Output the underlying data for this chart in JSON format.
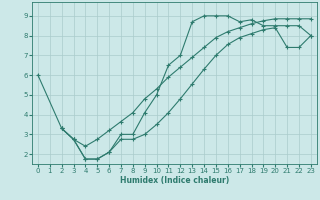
{
  "xlabel": "Humidex (Indice chaleur)",
  "bg_color": "#cce8e8",
  "grid_color": "#aacccc",
  "line_color": "#2e7b6e",
  "xlim": [
    -0.5,
    23.5
  ],
  "ylim": [
    1.5,
    9.7
  ],
  "xticks": [
    0,
    1,
    2,
    3,
    4,
    5,
    6,
    7,
    8,
    9,
    10,
    11,
    12,
    13,
    14,
    15,
    16,
    17,
    18,
    19,
    20,
    21,
    22,
    23
  ],
  "yticks": [
    2,
    3,
    4,
    5,
    6,
    7,
    8,
    9
  ],
  "curve1_x": [
    0,
    2,
    3,
    4,
    5,
    6,
    7,
    8,
    9,
    10,
    11,
    12,
    13,
    14,
    15,
    16,
    17,
    18,
    19,
    20,
    21,
    22,
    23
  ],
  "curve1_y": [
    6.0,
    3.3,
    2.75,
    1.75,
    1.75,
    2.1,
    3.0,
    3.0,
    4.1,
    5.0,
    6.5,
    7.0,
    8.7,
    9.0,
    9.0,
    9.0,
    8.7,
    8.8,
    8.5,
    8.5,
    8.5,
    8.5,
    8.0
  ],
  "curve2_x": [
    2,
    3,
    4,
    5,
    6,
    7,
    8,
    9,
    10,
    11,
    12,
    13,
    14,
    15,
    16,
    17,
    18,
    19,
    20,
    21,
    22,
    23
  ],
  "curve2_y": [
    3.3,
    2.75,
    2.4,
    2.75,
    3.2,
    3.65,
    4.1,
    4.8,
    5.3,
    5.9,
    6.4,
    6.9,
    7.4,
    7.9,
    8.2,
    8.4,
    8.6,
    8.75,
    8.85,
    8.85,
    8.85,
    8.85
  ],
  "curve3_x": [
    2,
    3,
    4,
    5,
    6,
    7,
    8,
    9,
    10,
    11,
    12,
    13,
    14,
    15,
    16,
    17,
    18,
    19,
    20,
    21,
    22,
    23
  ],
  "curve3_y": [
    3.3,
    2.75,
    1.75,
    1.75,
    2.1,
    2.75,
    2.75,
    3.0,
    3.5,
    4.1,
    4.8,
    5.55,
    6.3,
    7.0,
    7.55,
    7.9,
    8.1,
    8.3,
    8.4,
    7.4,
    7.4,
    8.0
  ]
}
